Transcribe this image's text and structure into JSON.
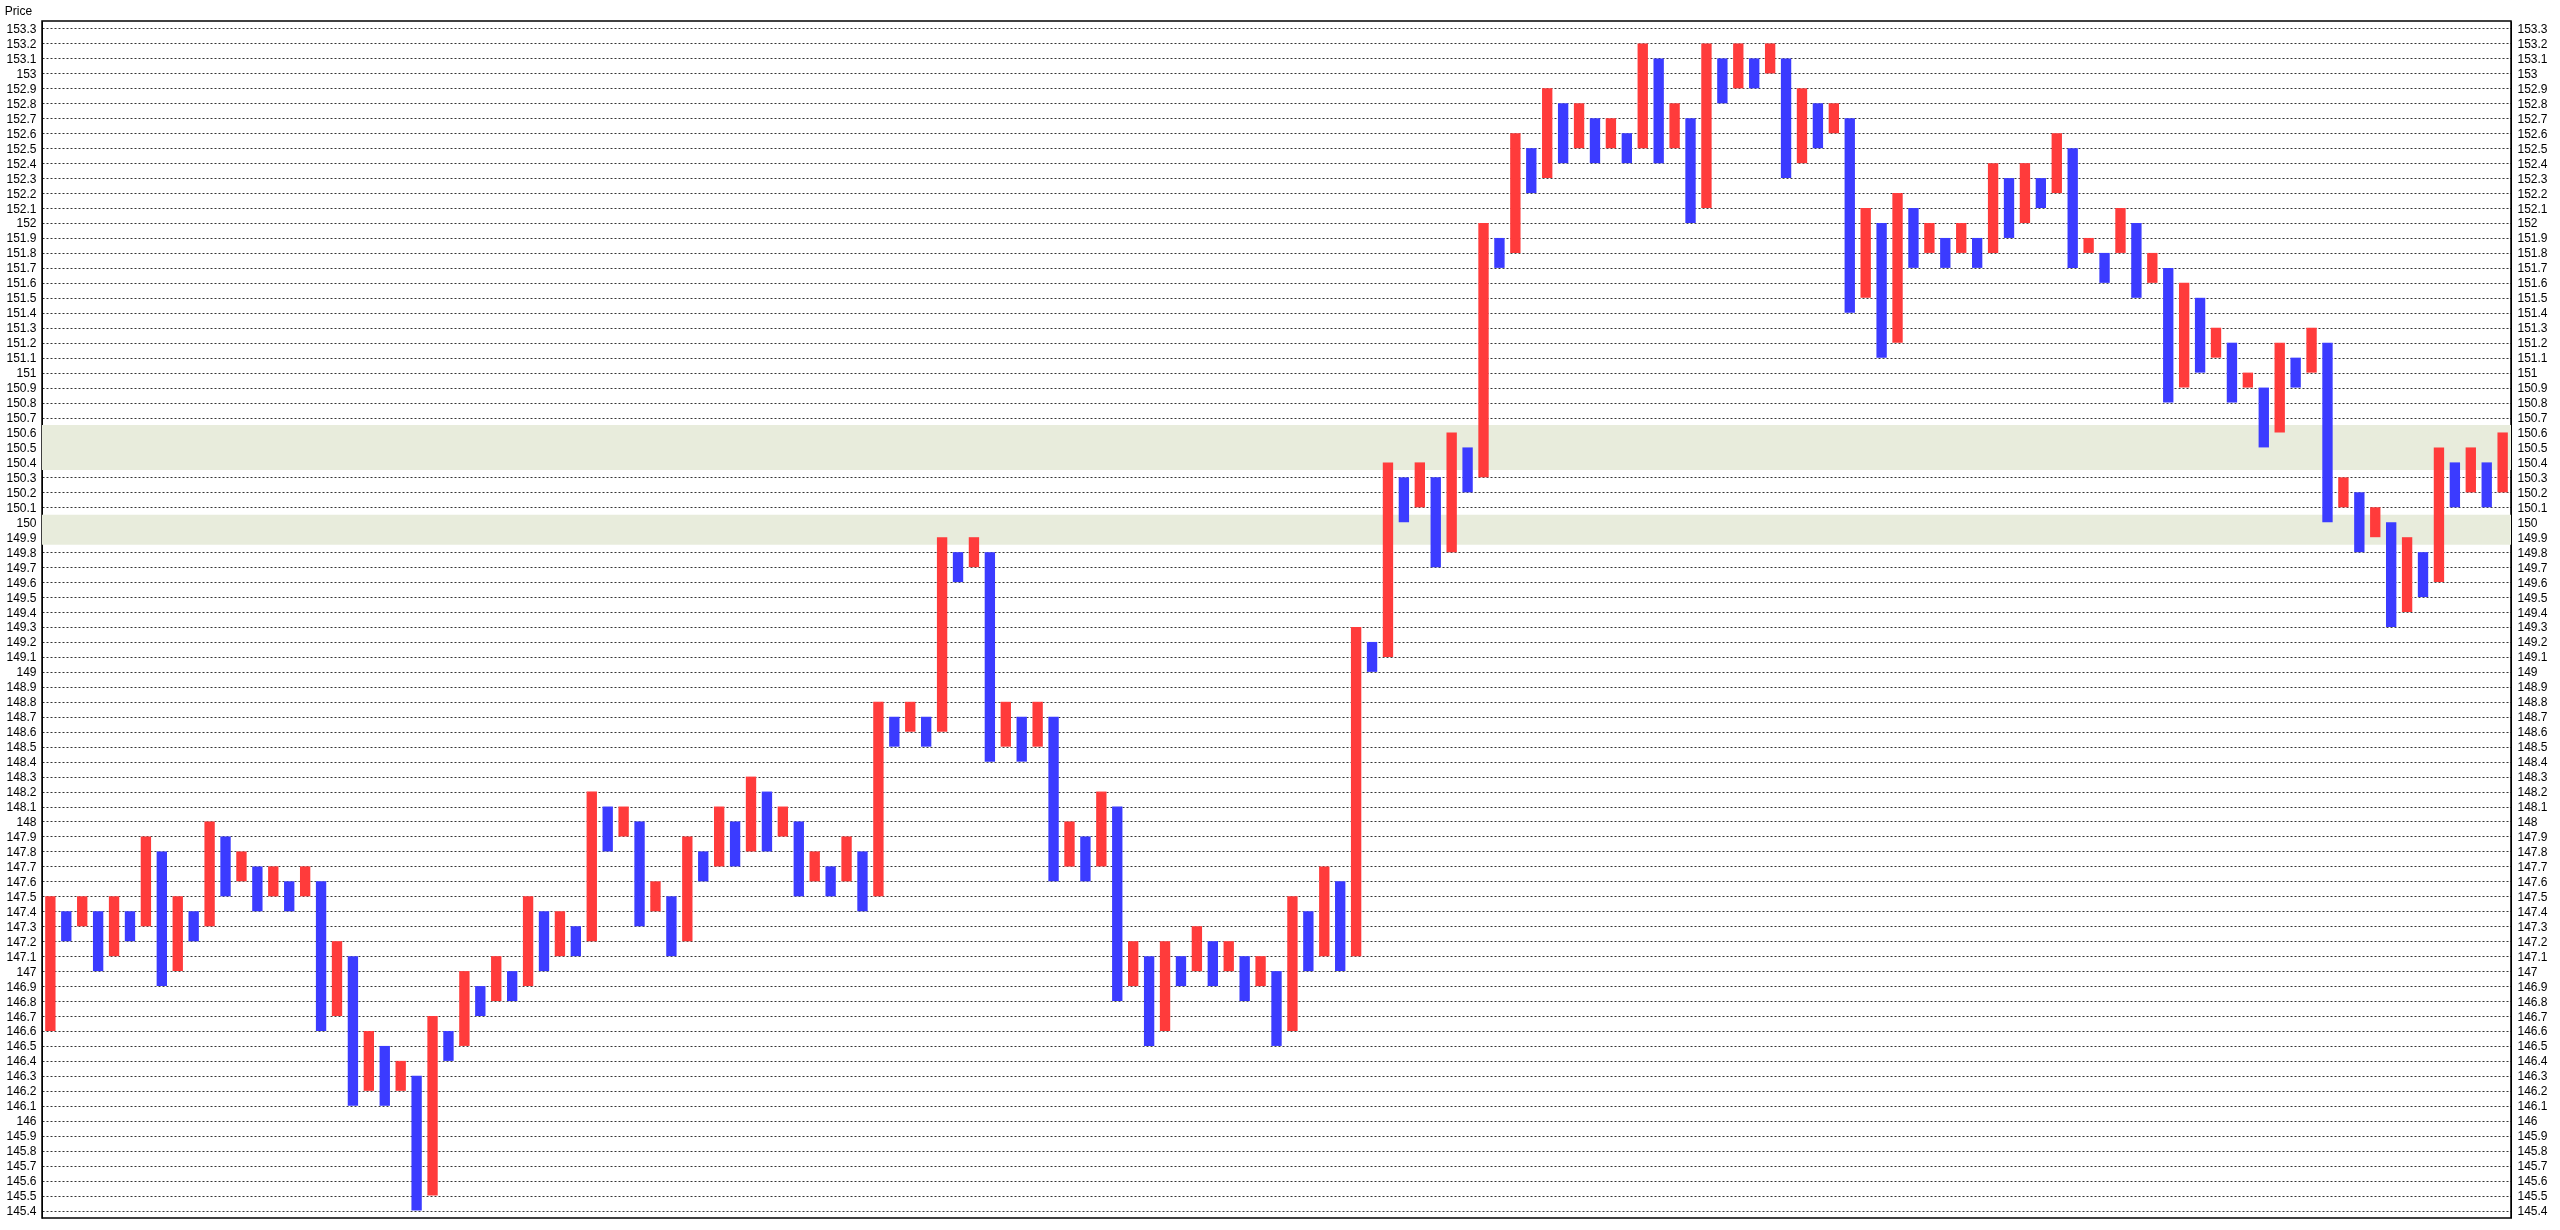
{
  "chart_data": {
    "type": "bar",
    "ylabel": "Price",
    "tick_labels": "y",
    "grid": "y",
    "ylim": [
      145.35,
      153.35
    ],
    "y2lim": [
      145.35,
      153.35
    ],
    "yticks": [
      145.4,
      145.5,
      145.6,
      145.7,
      145.8,
      145.9,
      146,
      146.1,
      146.2,
      146.3,
      146.4,
      146.5,
      146.6,
      146.7,
      146.8,
      146.9,
      147,
      147.1,
      147.2,
      147.3,
      147.4,
      147.5,
      147.6,
      147.7,
      147.8,
      147.9,
      148,
      148.1,
      148.2,
      148.3,
      148.4,
      148.5,
      148.6,
      148.7,
      148.8,
      148.9,
      149,
      149.1,
      149.2,
      149.3,
      149.4,
      149.5,
      149.6,
      149.7,
      149.8,
      149.9,
      150,
      150.1,
      150.2,
      150.3,
      150.4,
      150.5,
      150.6,
      150.7,
      150.8,
      150.9,
      151,
      151.1,
      151.2,
      151.3,
      151.4,
      151.5,
      151.6,
      151.7,
      151.8,
      151.9,
      152,
      152.1,
      152.2,
      152.3,
      152.4,
      152.5,
      152.6,
      152.7,
      152.8,
      152.9,
      153,
      153.1,
      153.2,
      153.3
    ],
    "y2ticks": [
      145.4,
      145.5,
      145.6,
      145.7,
      145.8,
      145.9,
      146,
      146.1,
      146.2,
      146.3,
      146.4,
      146.5,
      146.6,
      146.7,
      146.8,
      146.9,
      147,
      147.1,
      147.2,
      147.3,
      147.4,
      147.5,
      147.6,
      147.7,
      147.8,
      147.9,
      148,
      148.1,
      148.2,
      148.3,
      148.4,
      148.5,
      148.6,
      148.7,
      148.8,
      148.9,
      149,
      149.1,
      149.2,
      149.3,
      149.4,
      149.5,
      149.6,
      149.7,
      149.8,
      149.9,
      150,
      150.1,
      150.2,
      150.3,
      150.4,
      150.5,
      150.6,
      150.7,
      150.8,
      150.9,
      151,
      151.1,
      151.2,
      151.3,
      151.4,
      151.5,
      151.6,
      151.7,
      151.8,
      151.9,
      152,
      152.1,
      152.2,
      152.3,
      152.4,
      152.5,
      152.6,
      152.7,
      152.8,
      152.9,
      153,
      153.1,
      153.2,
      153.3
    ],
    "bands": [
      {
        "axis": "y",
        "from": 149.85,
        "to": 150.05,
        "color": "#e8ecdc"
      },
      {
        "axis": "y",
        "from": 150.35,
        "to": 150.65,
        "color": "#e8ecdc"
      }
    ],
    "categories": [
      null,
      null,
      null,
      null,
      null,
      null,
      null,
      null,
      null,
      null,
      null,
      null,
      null,
      null,
      null,
      null,
      null,
      null,
      null,
      null,
      null,
      null,
      null,
      null,
      null,
      null,
      null,
      null,
      null,
      null,
      null,
      null,
      null,
      null,
      null,
      null,
      null,
      null,
      null,
      null,
      null,
      null,
      null,
      null,
      null,
      null,
      null,
      null,
      null,
      null,
      null,
      null,
      null,
      null,
      null,
      null,
      null,
      null,
      null,
      null,
      null,
      null,
      null,
      null,
      null,
      null,
      null,
      null,
      null,
      null,
      null,
      null,
      null,
      null,
      null,
      null,
      null,
      null,
      null,
      null,
      null,
      null,
      null,
      null,
      null,
      null,
      null,
      null,
      null,
      null,
      null,
      null,
      null,
      null,
      null,
      null,
      null,
      null,
      null,
      null,
      null,
      null,
      null,
      null,
      null,
      null,
      null,
      null,
      null,
      null,
      null,
      null,
      null,
      null,
      null,
      null,
      null,
      null,
      null,
      null,
      null,
      null,
      null,
      null,
      null,
      null,
      null,
      null,
      null,
      null,
      null,
      null,
      null,
      null,
      null,
      null,
      null,
      null,
      null,
      null,
      null,
      null,
      null,
      null,
      null,
      null,
      null,
      null,
      null,
      null,
      null,
      null,
      null,
      null,
      null
    ],
    "base": [
      146.6,
      147.2,
      147.3,
      147,
      147.1,
      147.2,
      147.3,
      146.9,
      147,
      147.2,
      147.3,
      147.5,
      147.6,
      147.4,
      147.5,
      147.4,
      147.5,
      146.6,
      146.7,
      146.1,
      146.2,
      146.1,
      146.2,
      145.4,
      145.5,
      146.4,
      146.5,
      146.7,
      146.8,
      146.8,
      146.9,
      147,
      147.1,
      147.1,
      147.2,
      147.8,
      147.9,
      147.3,
      147.4,
      147.1,
      147.2,
      147.6,
      147.7,
      147.7,
      147.8,
      147.8,
      147.9,
      147.5,
      147.6,
      147.5,
      147.6,
      147.4,
      147.5,
      148.5,
      148.6,
      148.5,
      148.6,
      149.6,
      149.7,
      148.4,
      148.5,
      148.4,
      148.5,
      147.6,
      147.7,
      147.6,
      147.7,
      146.8,
      146.9,
      146.5,
      146.6,
      146.9,
      147,
      146.9,
      147,
      146.8,
      146.9,
      146.5,
      146.6,
      147,
      147.1,
      147,
      147.1,
      149,
      149.1,
      150,
      150.1,
      149.7,
      149.8,
      150.2,
      150.3,
      151.7,
      151.8,
      152.2,
      152.3,
      152.4,
      152.5,
      152.4,
      152.5,
      152.4,
      152.5,
      152.4,
      152.5,
      152,
      152.1,
      152.8,
      152.9,
      152.9,
      153,
      152.3,
      152.4,
      152.5,
      152.6,
      151.4,
      151.5,
      151.1,
      151.2,
      151.7,
      151.8,
      151.7,
      151.8,
      151.7,
      151.8,
      151.9,
      152,
      152.1,
      152.2,
      151.7,
      151.8,
      151.6,
      151.8,
      151.5,
      151.6,
      150.8,
      150.9,
      151,
      151.1,
      150.8,
      150.9,
      150.5,
      150.6,
      150.9,
      151,
      150,
      150.1,
      149.8,
      149.9,
      149.3,
      149.4,
      149.5,
      149.6,
      150.1,
      150.2,
      150.1,
      150.2
    ],
    "values": [
      0.9,
      0.2,
      0.2,
      0.4,
      0.4,
      0.2,
      0.6,
      0.9,
      0.5,
      0.2,
      0.7,
      0.4,
      0.2,
      0.3,
      0.2,
      0.2,
      0.2,
      1.0,
      0.5,
      1.0,
      0.4,
      0.4,
      0.2,
      0.9,
      1.2,
      0.2,
      0.5,
      0.2,
      0.3,
      0.2,
      0.6,
      0.4,
      0.3,
      0.2,
      1.0,
      0.3,
      0.2,
      0.7,
      0.2,
      0.4,
      0.7,
      0.2,
      0.4,
      0.3,
      0.5,
      0.4,
      0.2,
      0.5,
      0.2,
      0.2,
      0.3,
      0.4,
      1.3,
      0.2,
      0.2,
      0.2,
      1.3,
      0.2,
      0.2,
      1.4,
      0.3,
      0.3,
      0.3,
      1.1,
      0.3,
      0.3,
      0.5,
      1.3,
      0.3,
      0.6,
      0.6,
      0.2,
      0.3,
      0.3,
      0.2,
      0.3,
      0.2,
      0.5,
      0.9,
      0.4,
      0.6,
      0.6,
      2.2,
      0.2,
      1.3,
      0.3,
      0.3,
      0.6,
      0.8,
      0.3,
      1.7,
      0.2,
      0.8,
      0.3,
      0.6,
      0.4,
      0.3,
      0.3,
      0.2,
      0.2,
      0.7,
      0.7,
      0.3,
      0.7,
      1.1,
      0.3,
      0.3,
      0.2,
      0.2,
      0.8,
      0.5,
      0.3,
      0.2,
      1.3,
      0.6,
      0.9,
      1.0,
      0.4,
      0.2,
      0.2,
      0.2,
      0.2,
      0.6,
      0.4,
      0.4,
      0.2,
      0.4,
      0.8,
      0.1,
      0.2,
      0.3,
      0.5,
      0.2,
      0.9,
      0.7,
      0.5,
      0.2,
      0.4,
      0.1,
      0.4,
      0.6,
      0.2,
      0.3,
      1.2,
      0.2,
      0.4,
      0.2,
      0.7,
      0.5,
      0.3,
      0.9,
      0.3,
      0.3,
      0.3,
      0.4
    ],
    "colors": [
      "#ff3b3b",
      "#3b3bff",
      "#ff3b3b",
      "#3b3bff",
      "#ff3b3b",
      "#3b3bff",
      "#ff3b3b",
      "#3b3bff",
      "#ff3b3b",
      "#3b3bff",
      "#ff3b3b",
      "#3b3bff",
      "#ff3b3b",
      "#3b3bff",
      "#ff3b3b",
      "#3b3bff",
      "#ff3b3b",
      "#3b3bff",
      "#ff3b3b",
      "#3b3bff",
      "#ff3b3b",
      "#3b3bff",
      "#ff3b3b",
      "#3b3bff",
      "#ff3b3b",
      "#3b3bff",
      "#ff3b3b",
      "#3b3bff",
      "#ff3b3b",
      "#3b3bff",
      "#ff3b3b",
      "#3b3bff",
      "#ff3b3b",
      "#3b3bff",
      "#ff3b3b",
      "#3b3bff",
      "#ff3b3b",
      "#3b3bff",
      "#ff3b3b",
      "#3b3bff",
      "#ff3b3b",
      "#3b3bff",
      "#ff3b3b",
      "#3b3bff",
      "#ff3b3b",
      "#3b3bff",
      "#ff3b3b",
      "#3b3bff",
      "#ff3b3b",
      "#3b3bff",
      "#ff3b3b",
      "#3b3bff",
      "#ff3b3b",
      "#3b3bff",
      "#ff3b3b",
      "#3b3bff",
      "#ff3b3b",
      "#3b3bff",
      "#ff3b3b",
      "#3b3bff",
      "#ff3b3b",
      "#3b3bff",
      "#ff3b3b",
      "#3b3bff",
      "#ff3b3b",
      "#3b3bff",
      "#ff3b3b",
      "#3b3bff",
      "#ff3b3b",
      "#3b3bff",
      "#ff3b3b",
      "#3b3bff",
      "#ff3b3b",
      "#3b3bff",
      "#ff3b3b",
      "#3b3bff",
      "#ff3b3b",
      "#3b3bff",
      "#ff3b3b",
      "#3b3bff",
      "#ff3b3b",
      "#3b3bff",
      "#ff3b3b",
      "#3b3bff",
      "#ff3b3b",
      "#3b3bff",
      "#ff3b3b",
      "#3b3bff",
      "#ff3b3b",
      "#3b3bff",
      "#ff3b3b",
      "#3b3bff",
      "#ff3b3b",
      "#3b3bff",
      "#ff3b3b",
      "#3b3bff",
      "#ff3b3b",
      "#3b3bff",
      "#ff3b3b",
      "#3b3bff",
      "#ff3b3b",
      "#3b3bff",
      "#ff3b3b",
      "#3b3bff",
      "#ff3b3b",
      "#3b3bff",
      "#ff3b3b",
      "#3b3bff",
      "#ff3b3b",
      "#3b3bff",
      "#ff3b3b",
      "#3b3bff",
      "#ff3b3b",
      "#3b3bff",
      "#ff3b3b",
      "#3b3bff",
      "#ff3b3b",
      "#3b3bff",
      "#ff3b3b",
      "#3b3bff",
      "#ff3b3b",
      "#3b3bff",
      "#ff3b3b",
      "#3b3bff",
      "#ff3b3b",
      "#3b3bff",
      "#ff3b3b",
      "#3b3bff",
      "#ff3b3b",
      "#3b3bff",
      "#ff3b3b",
      "#3b3bff",
      "#ff3b3b",
      "#3b3bff",
      "#ff3b3b",
      "#3b3bff",
      "#ff3b3b",
      "#3b3bff",
      "#ff3b3b",
      "#3b3bff",
      "#ff3b3b",
      "#3b3bff",
      "#ff3b3b",
      "#3b3bff",
      "#ff3b3b",
      "#3b3bff",
      "#ff3b3b",
      "#3b3bff",
      "#ff3b3b",
      "#3b3bff",
      "#ff3b3b",
      "#3b3bff",
      "#ff3b3b",
      "#3b3bff",
      "#ff3b3b"
    ]
  }
}
